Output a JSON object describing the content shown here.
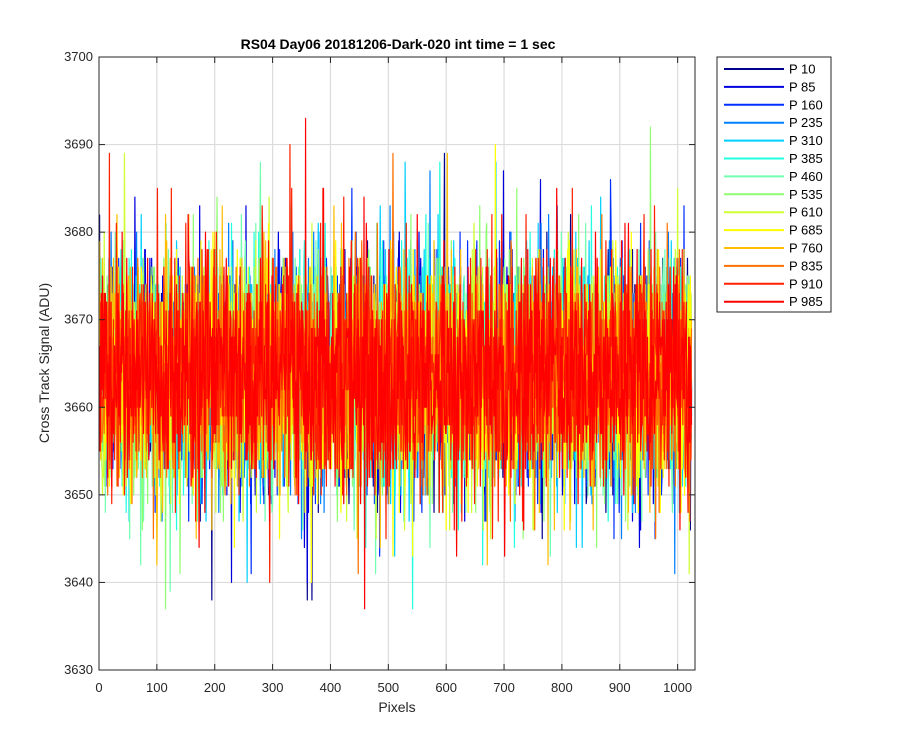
{
  "chart_data": {
    "type": "line",
    "title": "RS04 Day06 20181206-Dark-020 int time = 1 sec",
    "xlabel": "Pixels",
    "ylabel": "Cross Track Signal (ADU)",
    "xlim": [
      0,
      1030
    ],
    "ylim": [
      3630,
      3700
    ],
    "xticks": [
      0,
      100,
      200,
      300,
      400,
      500,
      600,
      700,
      800,
      900,
      1000
    ],
    "yticks": [
      3630,
      3640,
      3650,
      3660,
      3670,
      3680,
      3690,
      3700
    ],
    "grid": true,
    "legend_position": "outside-right",
    "n_points_per_series": 1024,
    "series": [
      {
        "name": "P 10",
        "color": "#00008f",
        "mean": 3664,
        "range": [
          3638,
          3689
        ]
      },
      {
        "name": "P 85",
        "color": "#0000df",
        "mean": 3664,
        "range": [
          3640,
          3687
        ]
      },
      {
        "name": "P 160",
        "color": "#0030ff",
        "mean": 3664,
        "range": [
          3641,
          3686
        ]
      },
      {
        "name": "P 235",
        "color": "#0080ff",
        "mean": 3664,
        "range": [
          3641,
          3687
        ]
      },
      {
        "name": "P 310",
        "color": "#00cfff",
        "mean": 3664,
        "range": [
          3640,
          3688
        ]
      },
      {
        "name": "P 385",
        "color": "#20ffdf",
        "mean": 3664,
        "range": [
          3637,
          3688
        ]
      },
      {
        "name": "P 460",
        "color": "#70ffaf",
        "mean": 3664,
        "range": [
          3639,
          3688
        ]
      },
      {
        "name": "P 535",
        "color": "#8fff70",
        "mean": 3664,
        "range": [
          3637,
          3692
        ]
      },
      {
        "name": "P 610",
        "color": "#cfff30",
        "mean": 3664,
        "range": [
          3641,
          3689
        ]
      },
      {
        "name": "P 685",
        "color": "#ffff00",
        "mean": 3664,
        "range": [
          3640,
          3690
        ]
      },
      {
        "name": "P 760",
        "color": "#ffbf00",
        "mean": 3664,
        "range": [
          3642,
          3689
        ]
      },
      {
        "name": "P 835",
        "color": "#ff7000",
        "mean": 3664,
        "range": [
          3641,
          3689
        ]
      },
      {
        "name": "P 910",
        "color": "#ff2000",
        "mean": 3664,
        "range": [
          3640,
          3690
        ]
      },
      {
        "name": "P 985",
        "color": "#ff0000",
        "mean": 3664,
        "range": [
          3637,
          3693
        ]
      }
    ]
  }
}
